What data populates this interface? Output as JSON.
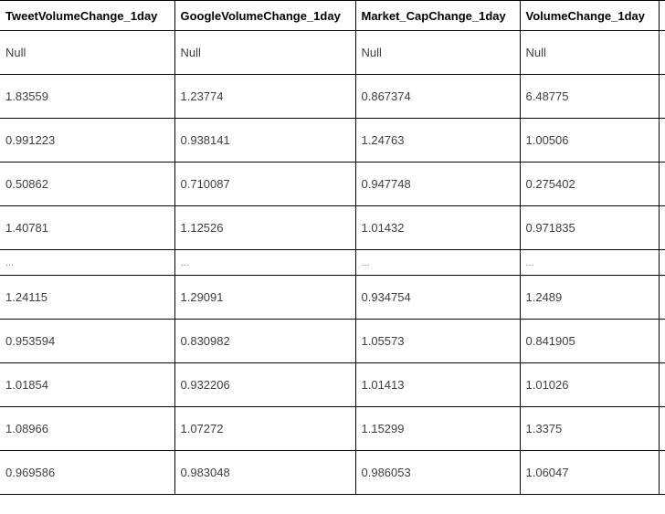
{
  "table": {
    "columns": [
      "TweetVolumeChange_1day",
      "GoogleVolumeChange_1day",
      "Market_CapChange_1day",
      "VolumeChange_1day",
      "..."
    ],
    "rows": [
      [
        "Null",
        "Null",
        "Null",
        "Null",
        ""
      ],
      [
        "1.83559",
        "1.23774",
        "0.867374",
        "6.48775",
        ""
      ],
      [
        "0.991223",
        "0.938141",
        "1.24763",
        "1.00506",
        ""
      ],
      [
        "0.50862",
        "0.710087",
        "0.947748",
        "0.275402",
        ""
      ],
      [
        "1.40781",
        "1.12526",
        "1.01432",
        "0.971835",
        ""
      ],
      [
        "...",
        "...",
        "...",
        "...",
        ""
      ],
      [
        "1.24115",
        "1.29091",
        "0.934754",
        "1.2489",
        ""
      ],
      [
        "0.953594",
        "0.830982",
        "1.05573",
        "0.841905",
        ""
      ],
      [
        "1.01854",
        "0.932206",
        "1.01413",
        "1.01026",
        ""
      ],
      [
        "1.08966",
        "1.07272",
        "1.15299",
        "1.3375",
        ""
      ],
      [
        "0.969586",
        "0.983048",
        "0.986053",
        "1.06047",
        ""
      ]
    ]
  }
}
